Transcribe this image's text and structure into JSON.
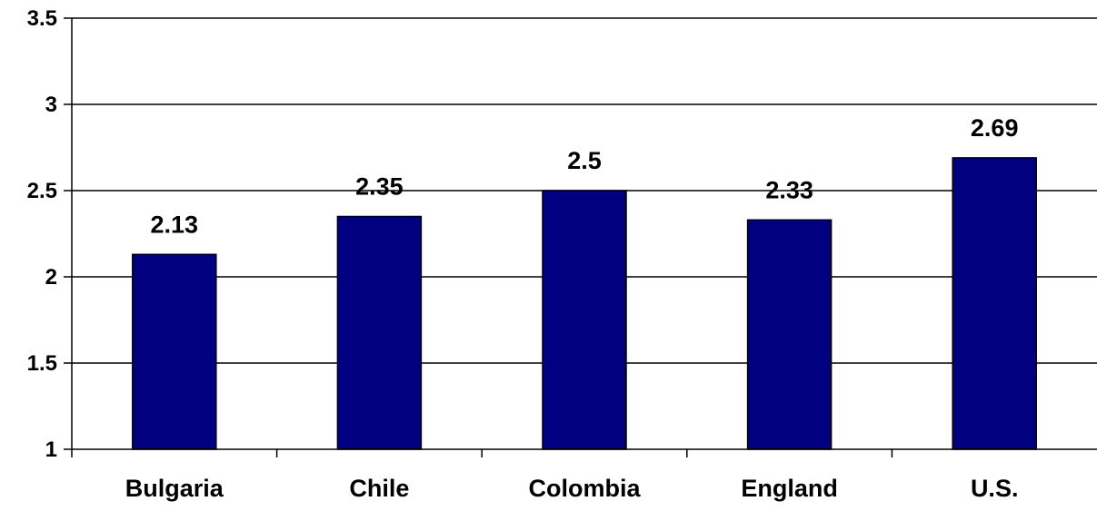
{
  "chart_data": {
    "type": "bar",
    "title": "",
    "xlabel": "",
    "ylabel": "",
    "categories": [
      "Bulgaria",
      "Chile",
      "Colombia",
      "England",
      "U.S."
    ],
    "values": [
      2.13,
      2.35,
      2.5,
      2.33,
      2.69
    ],
    "data_labels": [
      "2.13",
      "2.35",
      "2.5",
      "2.33",
      "2.69"
    ],
    "ylim": [
      1,
      3.5
    ],
    "y_ticks": [
      "1",
      "1.5",
      "2",
      "2.5",
      "3",
      "3.5"
    ],
    "grid": true,
    "legend": "none",
    "bar_color": "#000080"
  }
}
